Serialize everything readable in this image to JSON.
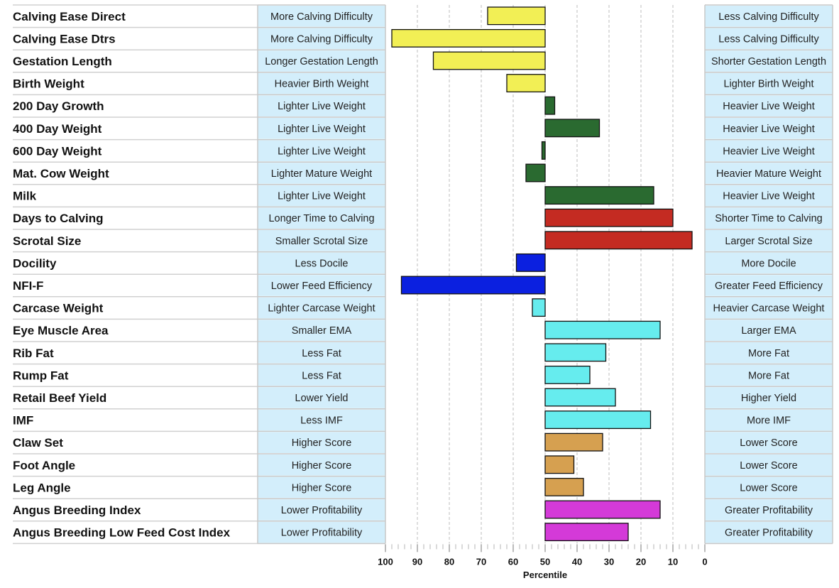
{
  "chart_data": {
    "type": "bar",
    "orientation": "horizontal",
    "xlabel": "Percentile",
    "xlim": [
      100,
      0
    ],
    "x_reversed": true,
    "center": 50,
    "xticks": [
      100,
      90,
      80,
      70,
      60,
      50,
      40,
      30,
      20,
      10,
      0
    ],
    "grid": true,
    "rows": [
      {
        "trait": "Calving Ease Direct",
        "low_label": "More Calving Difficulty",
        "high_label": "Less Calving Difficulty",
        "value": 68,
        "color": "#f2ef55"
      },
      {
        "trait": "Calving Ease Dtrs",
        "low_label": "More Calving Difficulty",
        "high_label": "Less Calving Difficulty",
        "value": 98,
        "color": "#f2ef55"
      },
      {
        "trait": "Gestation Length",
        "low_label": "Longer Gestation Length",
        "high_label": "Shorter Gestation Length",
        "value": 85,
        "color": "#f2ef55"
      },
      {
        "trait": "Birth Weight",
        "low_label": "Heavier Birth Weight",
        "high_label": "Lighter Birth Weight",
        "value": 62,
        "color": "#f2ef55"
      },
      {
        "trait": "200 Day Growth",
        "low_label": "Lighter Live Weight",
        "high_label": "Heavier Live Weight",
        "value": 47,
        "color": "#2a6a30"
      },
      {
        "trait": "400 Day Weight",
        "low_label": "Lighter Live Weight",
        "high_label": "Heavier Live Weight",
        "value": 33,
        "color": "#2a6a30"
      },
      {
        "trait": "600 Day Weight",
        "low_label": "Lighter Live Weight",
        "high_label": "Heavier Live Weight",
        "value": 51,
        "color": "#2a6a30"
      },
      {
        "trait": "Mat. Cow Weight",
        "low_label": "Lighter Mature Weight",
        "high_label": "Heavier Mature Weight",
        "value": 56,
        "color": "#2a6a30"
      },
      {
        "trait": "Milk",
        "low_label": "Lighter Live Weight",
        "high_label": "Heavier Live Weight",
        "value": 16,
        "color": "#2a6a30"
      },
      {
        "trait": "Days to Calving",
        "low_label": "Longer Time to Calving",
        "high_label": "Shorter Time to Calving",
        "value": 10,
        "color": "#c42b22"
      },
      {
        "trait": "Scrotal Size",
        "low_label": "Smaller Scrotal Size",
        "high_label": "Larger Scrotal Size",
        "value": 4,
        "color": "#c42b22"
      },
      {
        "trait": "Docility",
        "low_label": "Less Docile",
        "high_label": "More Docile",
        "value": 59,
        "color": "#0b20e0"
      },
      {
        "trait": "NFI-F",
        "low_label": "Lower Feed Efficiency",
        "high_label": "Greater Feed Efficiency",
        "value": 95,
        "color": "#0b20e0"
      },
      {
        "trait": "Carcase Weight",
        "low_label": "Lighter Carcase Weight",
        "high_label": "Heavier Carcase Weight",
        "value": 54,
        "color": "#66ecee"
      },
      {
        "trait": "Eye Muscle Area",
        "low_label": "Smaller EMA",
        "high_label": "Larger EMA",
        "value": 14,
        "color": "#66ecee"
      },
      {
        "trait": "Rib Fat",
        "low_label": "Less Fat",
        "high_label": "More Fat",
        "value": 31,
        "color": "#66ecee"
      },
      {
        "trait": "Rump Fat",
        "low_label": "Less Fat",
        "high_label": "More Fat",
        "value": 36,
        "color": "#66ecee"
      },
      {
        "trait": "Retail Beef Yield",
        "low_label": "Lower Yield",
        "high_label": "Higher Yield",
        "value": 28,
        "color": "#66ecee"
      },
      {
        "trait": "IMF",
        "low_label": "Less IMF",
        "high_label": "More IMF",
        "value": 17,
        "color": "#66ecee"
      },
      {
        "trait": "Claw Set",
        "low_label": "Higher Score",
        "high_label": "Lower Score",
        "value": 32,
        "color": "#d6a050"
      },
      {
        "trait": "Foot Angle",
        "low_label": "Higher Score",
        "high_label": "Lower Score",
        "value": 41,
        "color": "#d6a050"
      },
      {
        "trait": "Leg Angle",
        "low_label": "Higher Score",
        "high_label": "Lower Score",
        "value": 38,
        "color": "#d6a050"
      },
      {
        "trait": "Angus Breeding Index",
        "low_label": "Lower Profitability",
        "high_label": "Greater Profitability",
        "value": 14,
        "color": "#d43ad8"
      },
      {
        "trait": "Angus Breeding Low Feed Cost Index",
        "low_label": "Lower Profitability",
        "high_label": "Greater Profitability",
        "value": 24,
        "color": "#d43ad8"
      }
    ]
  }
}
